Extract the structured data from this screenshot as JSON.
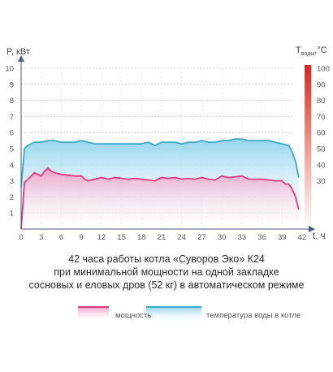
{
  "chart_data": {
    "type": "area",
    "x_ticks": [
      0,
      3,
      6,
      9,
      12,
      15,
      18,
      21,
      24,
      27,
      30,
      33,
      36,
      39,
      42
    ],
    "y_ticks": [
      1,
      2,
      3,
      4,
      5,
      6,
      7,
      8,
      9,
      10
    ],
    "y2_ticks": [
      30,
      40,
      50,
      60,
      70,
      80,
      90,
      100
    ],
    "ylim": [
      0,
      10
    ],
    "y2lim": [
      0,
      100
    ],
    "xlim": [
      0,
      42
    ],
    "ylabel": "P, кВт",
    "y2label_main": "T",
    "y2label_sub": "воды",
    "y2label_unit": ",°C",
    "xlabel": "t, ч",
    "series": [
      {
        "name": "мощность",
        "color": "#e0387f",
        "fill_color": "#f4a3c9",
        "x": [
          0,
          0.5,
          1,
          1.5,
          2,
          2.5,
          3,
          3.5,
          4,
          4.5,
          5,
          6,
          7,
          8,
          9,
          9.5,
          10,
          11,
          12,
          13,
          14,
          15,
          16,
          17,
          18,
          19,
          20,
          21,
          22,
          23,
          24,
          25,
          26,
          27,
          28,
          29,
          30,
          31,
          32,
          33,
          34,
          35,
          36,
          37,
          38,
          39,
          39.5,
          40,
          40.5,
          41,
          41.5
        ],
        "values": [
          0,
          2.9,
          3.1,
          3.3,
          3.5,
          3.4,
          3.3,
          3.6,
          3.8,
          3.6,
          3.5,
          3.4,
          3.35,
          3.3,
          3.3,
          3.1,
          3.0,
          3.1,
          3.2,
          3.1,
          3.2,
          3.15,
          3.1,
          3.15,
          3.1,
          3.05,
          3.0,
          3.2,
          3.15,
          3.2,
          3.1,
          3.15,
          3.1,
          3.2,
          3.1,
          3.05,
          3.3,
          3.2,
          3.25,
          3.3,
          3.1,
          3.1,
          3.1,
          3.05,
          3.0,
          3.0,
          2.8,
          2.8,
          2.5,
          2.0,
          1.2
        ]
      },
      {
        "name": "температура воды в котле",
        "color": "#3aa9c1",
        "fill_color": "#a9dcef",
        "x": [
          0,
          0.5,
          1,
          2,
          3,
          4,
          5,
          6,
          7,
          8,
          9,
          10,
          11,
          12,
          13,
          14,
          15,
          16,
          17,
          18,
          19,
          20,
          21,
          22,
          23,
          24,
          25,
          26,
          27,
          28,
          29,
          30,
          31,
          32,
          33,
          34,
          35,
          36,
          37,
          38,
          39,
          40,
          40.5,
          41,
          41.5
        ],
        "values": [
          26,
          50,
          52,
          54,
          54,
          55,
          55,
          54,
          54,
          54,
          55,
          54,
          53,
          53,
          53,
          53,
          53,
          53,
          53,
          53,
          54,
          52,
          54,
          54,
          54,
          53,
          54,
          54,
          55,
          54,
          54,
          55,
          55,
          56,
          56,
          55,
          55,
          55,
          55,
          54,
          53,
          52,
          48,
          42,
          32
        ]
      }
    ]
  },
  "caption": {
    "line1": "42 часа работы котла «Суворов Эко» К24",
    "line2": "при минимальной мощности на одной закладке",
    "line3": "сосновых и еловых дров (52 кг) в автоматическом режиме"
  },
  "legend": {
    "power": "мощность",
    "temperature": "температура воды в котле"
  },
  "colors": {
    "axis": "#4a5a78",
    "grid": "#c9ccd3",
    "power_line": "#e0387f",
    "temp_line": "#3aa9c1"
  }
}
